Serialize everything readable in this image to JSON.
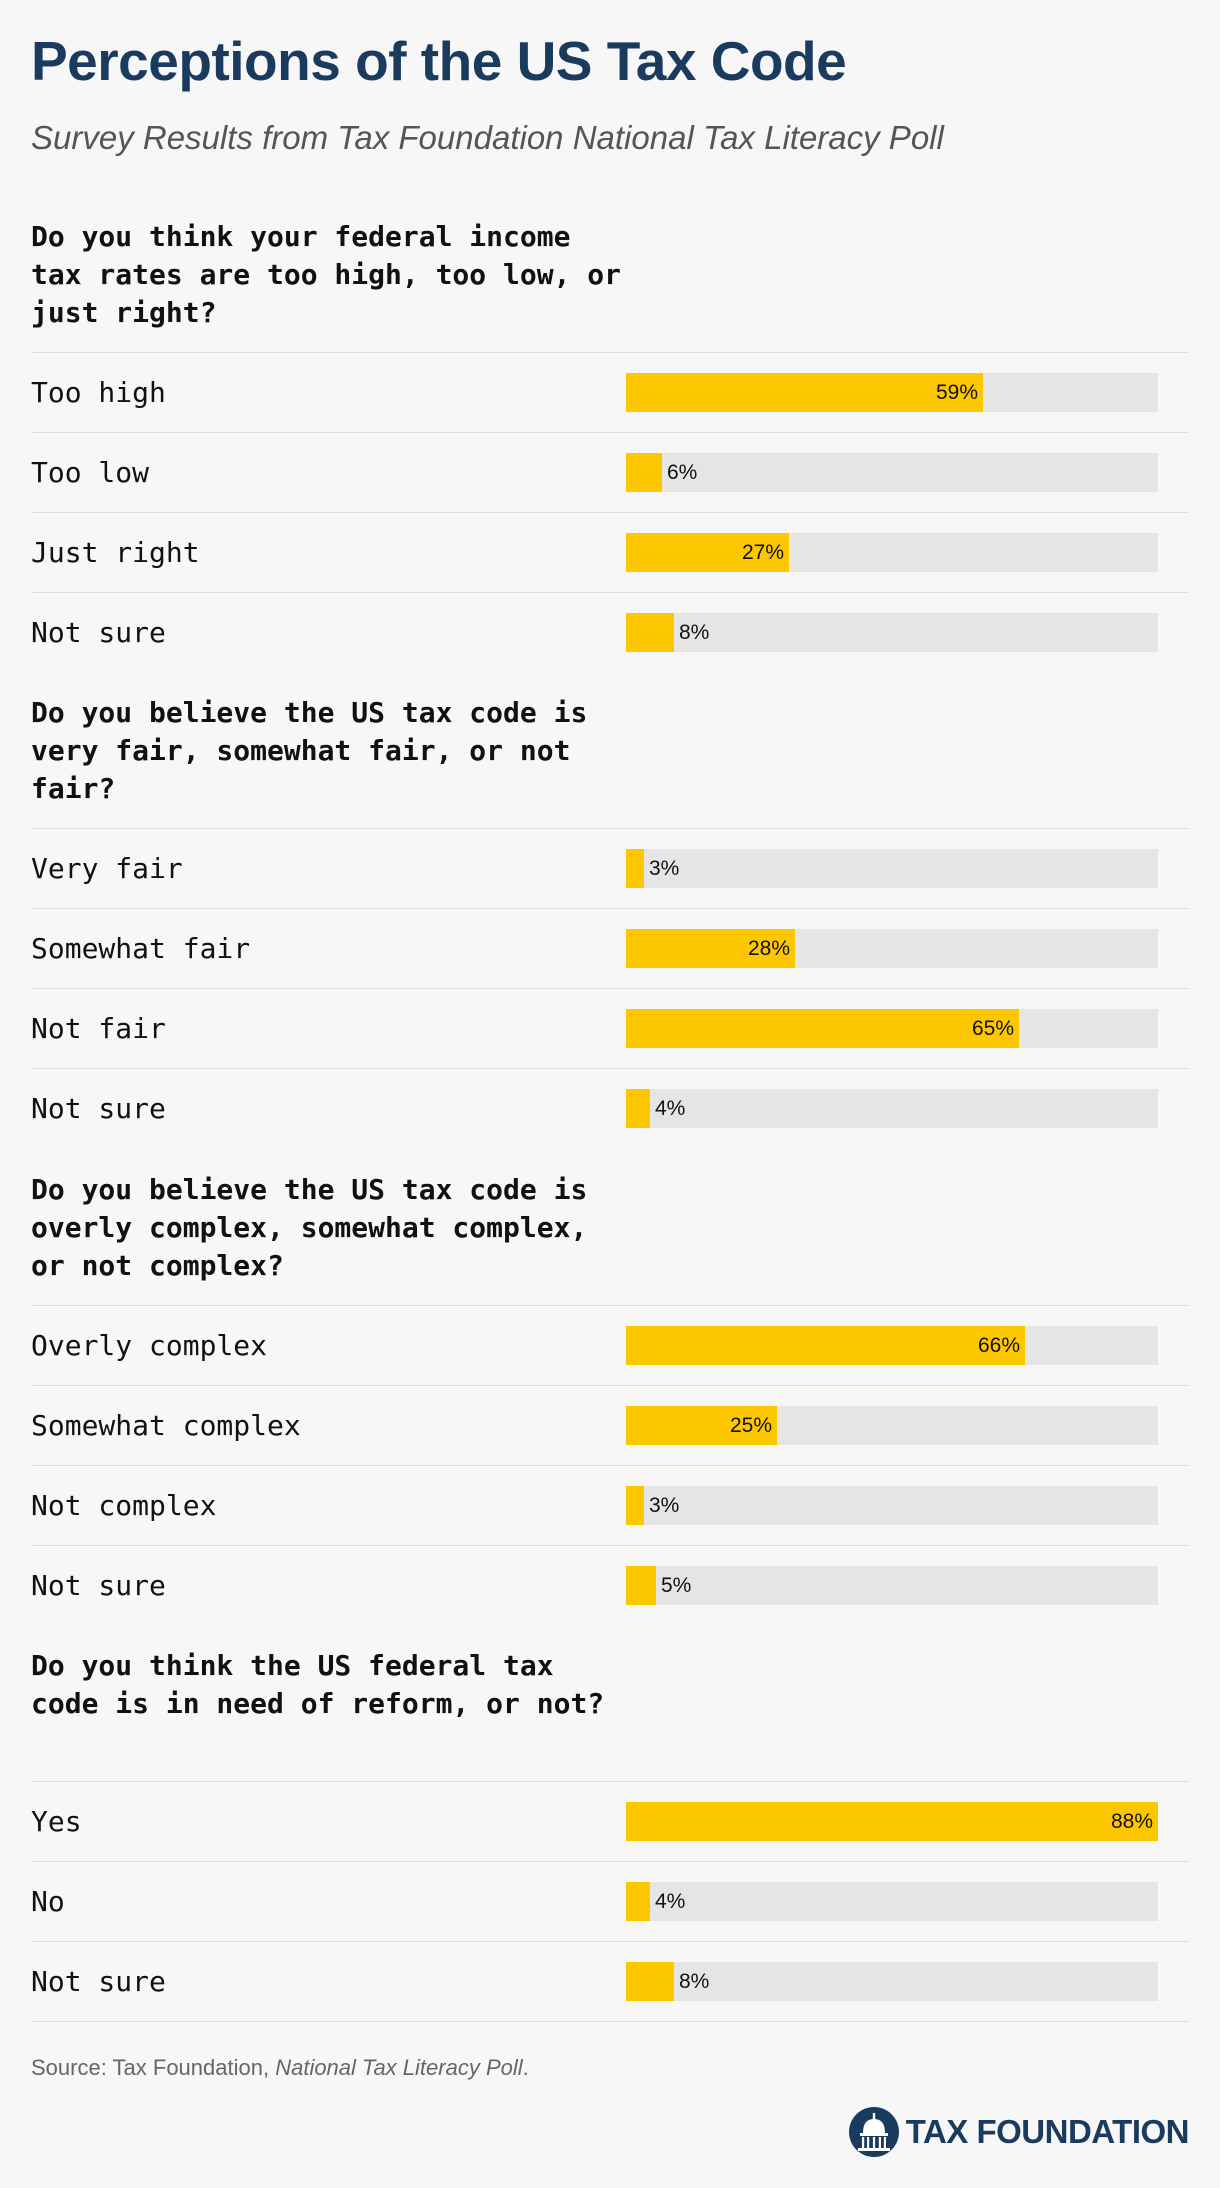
{
  "title": "Perceptions of the US Tax Code",
  "subtitle": "Survey Results from Tax Foundation National Tax Literacy Poll",
  "colors": {
    "bar": "#fdc700",
    "track": "#e5e5e5",
    "title": "#1a3a5e",
    "background": "#f7f7f7"
  },
  "chart_data": {
    "type": "bar",
    "orientation": "horizontal",
    "xlim": [
      0,
      88
    ],
    "grid": false,
    "questions": [
      {
        "question": "Do you think your federal income tax rates are too high, too low, or just right?",
        "categories": [
          "Too high",
          "Too low",
          "Just right",
          "Not sure"
        ],
        "values": [
          59,
          6,
          27,
          8
        ],
        "labels": [
          "59%",
          "6%",
          "27%",
          "8%"
        ]
      },
      {
        "question": "Do you believe the US tax code is very fair, somewhat fair, or not fair?",
        "categories": [
          "Very fair",
          "Somewhat fair",
          "Not fair",
          "Not sure"
        ],
        "values": [
          3,
          28,
          65,
          4
        ],
        "labels": [
          "3%",
          "28%",
          "65%",
          "4%"
        ]
      },
      {
        "question": "Do you believe the US tax code is overly complex, somewhat complex, or not complex?",
        "categories": [
          "Overly complex",
          "Somewhat complex",
          "Not complex",
          "Not sure"
        ],
        "values": [
          66,
          25,
          3,
          5
        ],
        "labels": [
          "66%",
          "25%",
          "3%",
          "5%"
        ]
      },
      {
        "question": "Do you think the US federal tax code is in need of reform, or not?",
        "categories": [
          "Yes",
          "No",
          "Not sure"
        ],
        "values": [
          88,
          4,
          8
        ],
        "labels": [
          "88%",
          "4%",
          "8%"
        ]
      }
    ]
  },
  "source": {
    "prefix": "Source: Tax Foundation, ",
    "title": "National Tax Literacy Poll",
    "suffix": "."
  },
  "logo": {
    "icon": "capitol-dome-icon",
    "text": "TAX FOUNDATION"
  }
}
